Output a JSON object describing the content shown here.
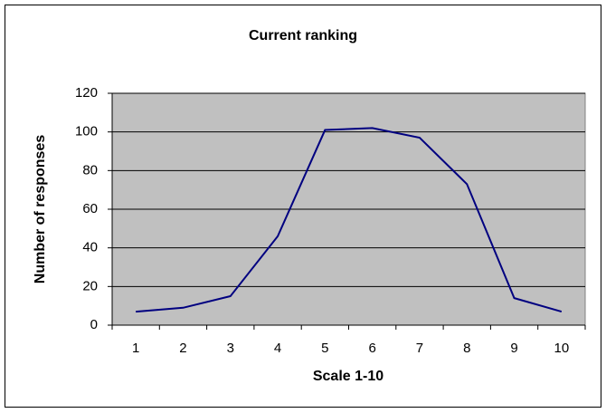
{
  "chart_data": {
    "type": "line",
    "title": "Current ranking",
    "x_label": "Scale 1-10",
    "y_label": "Number of responses",
    "categories": [
      "1",
      "2",
      "3",
      "4",
      "5",
      "6",
      "7",
      "8",
      "9",
      "10"
    ],
    "series": [
      {
        "name": "Current ranking",
        "color": "#000080",
        "values": [
          7,
          9,
          15,
          46,
          101,
          102,
          97,
          73,
          14,
          7
        ]
      }
    ],
    "ylim": [
      0,
      120
    ],
    "yticks": [
      0,
      20,
      40,
      60,
      80,
      100,
      120
    ],
    "grid": true,
    "plot_background": "#c0c0c0"
  }
}
